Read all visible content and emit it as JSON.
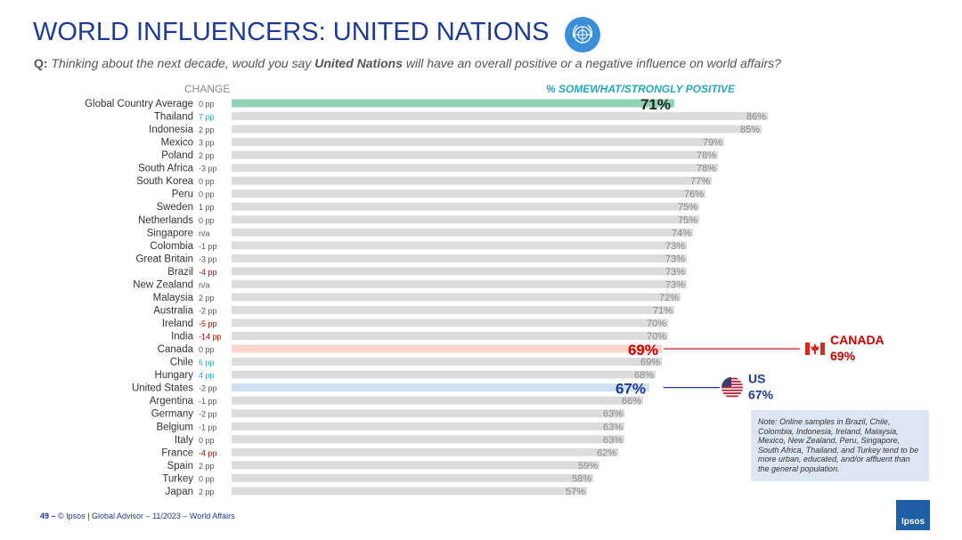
{
  "header": {
    "title": "WORLD INFLUENCERS: UNITED NATIONS",
    "logo_icon": "un-emblem-icon",
    "question_prefix": "Q:",
    "question_part1": " Thinking about the next decade, would you say ",
    "question_bold": "United Nations",
    "question_part2": " will have an overall positive or a negative influence on world affairs?"
  },
  "columns": {
    "change_header": "CHANGE",
    "positive_header": "% SOMEWHAT/STRONGLY POSITIVE"
  },
  "colors": {
    "title": "#1f3a93",
    "bar_default": "#dcdcdc",
    "bar_global": "#8fd3b6",
    "bar_canada": "#fbd5cc",
    "bar_us": "#cfe0f5",
    "positive_change": "#2ba5bd",
    "negative_change": "#c00000",
    "canada": "#c00000",
    "us": "#1f3a93"
  },
  "chart_data": {
    "type": "bar",
    "orientation": "horizontal",
    "xlim": [
      0,
      100
    ],
    "categories": [
      "Global Country Average",
      "Thailand",
      "Indonesia",
      "Mexico",
      "Poland",
      "South Africa",
      "South Korea",
      "Peru",
      "Sweden",
      "Netherlands",
      "Singapore",
      "Colombia",
      "Great Britain",
      "Brazil",
      "New Zealand",
      "Malaysia",
      "Australia",
      "Ireland",
      "India",
      "Canada",
      "Chile",
      "Hungary",
      "United States",
      "Argentina",
      "Germany",
      "Belgium",
      "Italy",
      "France",
      "Spain",
      "Turkey",
      "Japan"
    ],
    "values": [
      71,
      86,
      85,
      79,
      78,
      78,
      77,
      76,
      75,
      75,
      74,
      73,
      73,
      73,
      73,
      72,
      71,
      70,
      70,
      69,
      69,
      68,
      67,
      66,
      63,
      63,
      63,
      62,
      59,
      58,
      57
    ],
    "changes": [
      "0 pp",
      "7 pp",
      "2 pp",
      "3 pp",
      "2 pp",
      "-3 pp",
      "0 pp",
      "0 pp",
      "1 pp",
      "0 pp",
      "n/a",
      "-1 pp",
      "-3 pp",
      "-4 pp",
      "n/a",
      "2 pp",
      "-2 pp",
      "-5 pp",
      "-14 pp",
      "0 pp",
      "6 pp",
      "4 pp",
      "-2 pp",
      "-1 pp",
      "-2 pp",
      "-1 pp",
      "0 pp",
      "-4 pp",
      "2 pp",
      "0 pp",
      "2 pp"
    ],
    "change_trend": [
      "neutral",
      "up",
      "neutral",
      "neutral",
      "neutral",
      "neutral",
      "neutral",
      "neutral",
      "neutral",
      "neutral",
      "neutral",
      "neutral",
      "neutral",
      "down",
      "neutral",
      "neutral",
      "neutral",
      "down",
      "down",
      "neutral",
      "up",
      "up",
      "neutral",
      "neutral",
      "neutral",
      "neutral",
      "neutral",
      "down",
      "neutral",
      "neutral",
      "neutral"
    ],
    "value_labels": [
      "71%",
      "86%",
      "85%",
      "79%",
      "78%",
      "78%",
      "77%",
      "76%",
      "75%",
      "75%",
      "74%",
      "73%",
      "73%",
      "73%",
      "73%",
      "72%",
      "71%",
      "70%",
      "70%",
      "69%",
      "69%",
      "68%",
      "67%",
      "66%",
      "63%",
      "63%",
      "63%",
      "62%",
      "59%",
      "58%",
      "57%"
    ],
    "highlight": [
      "global",
      "",
      "",
      "",
      "",
      "",
      "",
      "",
      "",
      "",
      "",
      "",
      "",
      "",
      "",
      "",
      "",
      "",
      "",
      "canada",
      "",
      "",
      "us",
      "",
      "",
      "",
      "",
      "",
      "",
      "",
      ""
    ]
  },
  "callouts": {
    "canada": {
      "name": "CANADA",
      "value": "69%",
      "icon": "canada-flag-icon"
    },
    "us": {
      "name": "US",
      "value": "67%",
      "icon": "us-flag-icon"
    }
  },
  "note": "Note: Online samples in Brazil, Chile, Colombia, Indonesia, Ireland, Malaysia, Mexico, New Zealand, Peru, Singapore, South Africa, Thailand, and Turkey tend to be more urban, educated, and/or affluent than the general population.",
  "footer": {
    "page": "49 –",
    "text": "© Ipsos | Global Advisor – 11/2023 – World Affairs",
    "logo_text": "Ipsos"
  }
}
